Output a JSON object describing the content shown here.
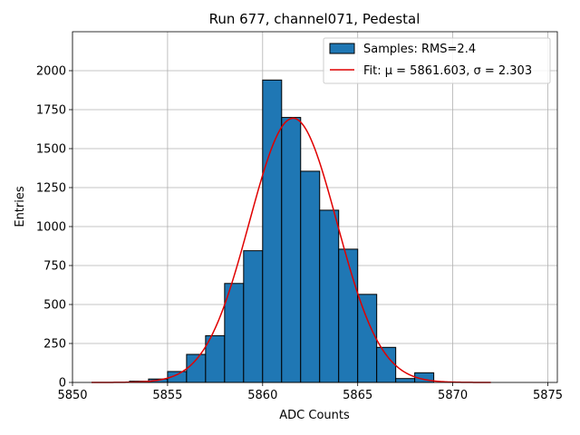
{
  "chart_data": {
    "type": "bar",
    "title": "Run 677, channel071, Pedestal",
    "xlabel": "ADC Counts",
    "ylabel": "Entries",
    "xlim": [
      5850,
      5875.5
    ],
    "ylim": [
      0,
      2250
    ],
    "xticks": [
      5850,
      5855,
      5860,
      5865,
      5870,
      5875
    ],
    "yticks": [
      0,
      250,
      500,
      750,
      1000,
      1250,
      1500,
      1750,
      2000
    ],
    "grid": true,
    "legend_position": "top-right",
    "bin_width": 1,
    "bins": [
      {
        "x": 5853,
        "y": 8
      },
      {
        "x": 5854,
        "y": 22
      },
      {
        "x": 5855,
        "y": 70
      },
      {
        "x": 5856,
        "y": 180
      },
      {
        "x": 5857,
        "y": 300
      },
      {
        "x": 5858,
        "y": 635
      },
      {
        "x": 5859,
        "y": 845
      },
      {
        "x": 5860,
        "y": 1940
      },
      {
        "x": 5861,
        "y": 1700
      },
      {
        "x": 5862,
        "y": 1355
      },
      {
        "x": 5863,
        "y": 1105
      },
      {
        "x": 5864,
        "y": 855
      },
      {
        "x": 5865,
        "y": 565
      },
      {
        "x": 5866,
        "y": 225
      },
      {
        "x": 5867,
        "y": 25
      },
      {
        "x": 5868,
        "y": 62
      }
    ],
    "fit": {
      "mu": 5861.603,
      "sigma": 2.303,
      "amplitude": 1695,
      "x_range": [
        5851,
        5872
      ]
    },
    "legend": [
      {
        "label": "Samples: RMS=2.4",
        "kind": "patch"
      },
      {
        "label": "Fit: μ = 5861.603, σ = 2.303",
        "kind": "line"
      }
    ],
    "colors": {
      "bar_fill": "#1f77b4",
      "bar_edge": "#000000",
      "fit_line": "#e00000",
      "grid": "#b0b0b0"
    }
  }
}
